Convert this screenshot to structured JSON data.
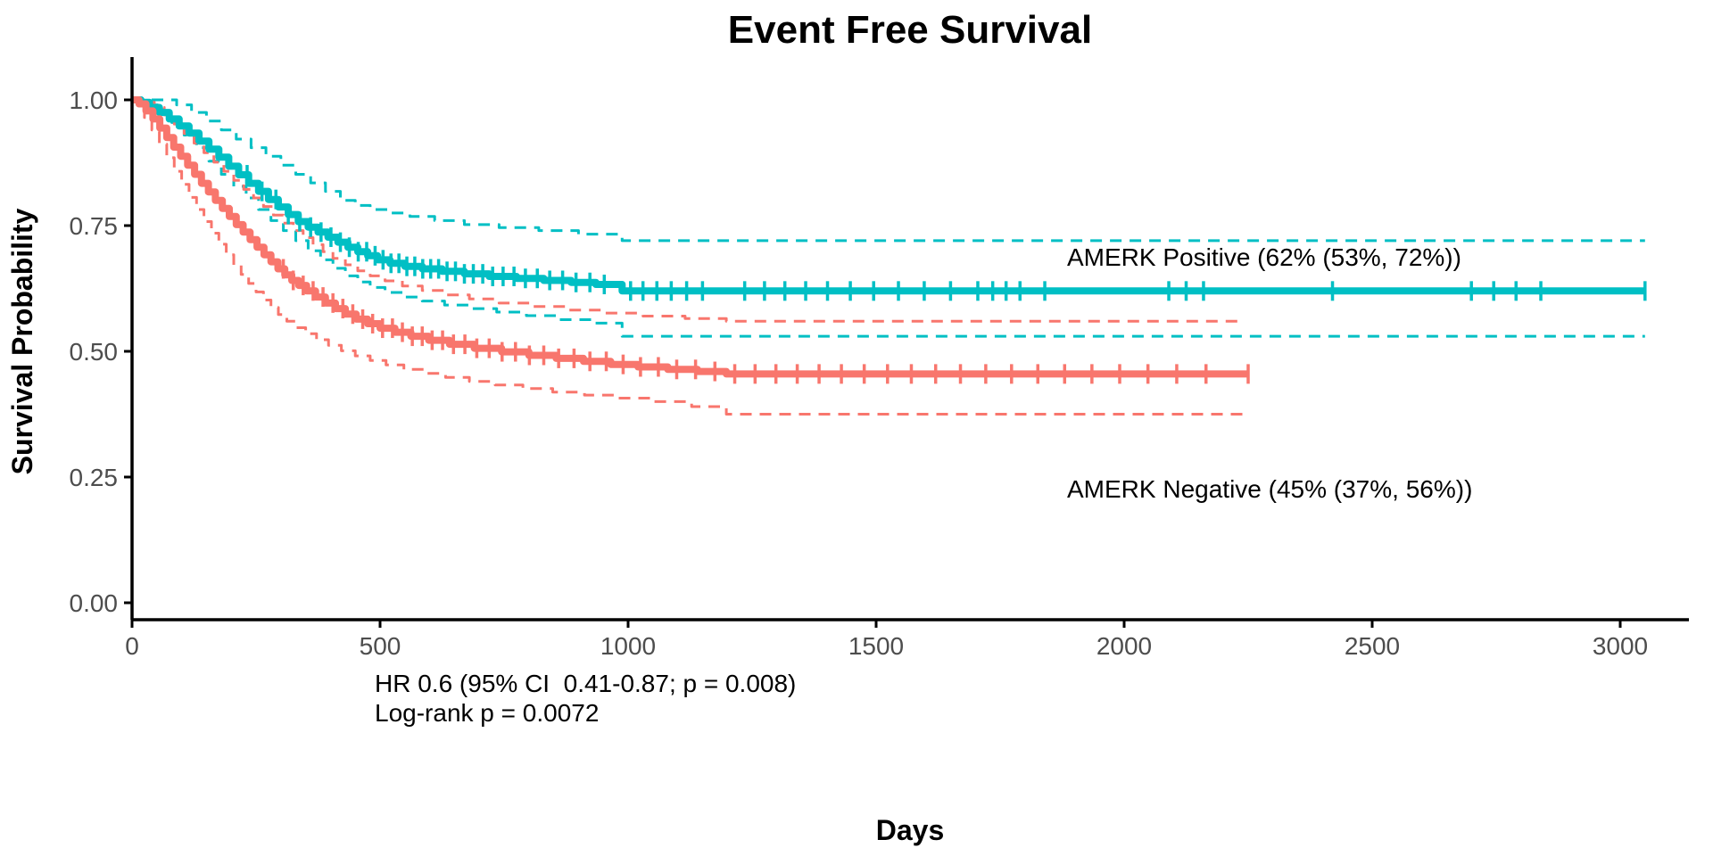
{
  "title": "Event Free Survival",
  "axes": {
    "x": {
      "label": "Days",
      "tick_labels": [
        "0",
        "500",
        "1000",
        "1500",
        "2000",
        "2500",
        "3000"
      ],
      "tick_values": [
        0,
        500,
        1000,
        1500,
        2000,
        2500,
        3000
      ],
      "range": [
        0,
        3000
      ]
    },
    "y": {
      "label": "Survival Probability",
      "tick_labels": [
        "1.00",
        "0.75",
        "0.50",
        "0.25",
        "0.00"
      ],
      "tick_values": [
        1.0,
        0.75,
        0.5,
        0.25,
        0.0
      ],
      "range": [
        0,
        1
      ]
    }
  },
  "annotations": {
    "hr_line": "HR 0.6 (95% CI  0.41-0.87; p = 0.008)",
    "logrank_line": "Log-rank p = 0.0072",
    "positive_label": "AMERK Positive (62% (53%, 72%))",
    "negative_label": "AMERK Negative (45% (37%, 56%))"
  },
  "colors": {
    "positive": "#00BFC4",
    "negative": "#F8766D",
    "axis_text": "#4d4d4d",
    "axis_line": "#000000"
  },
  "chart_data": {
    "type": "line",
    "subtype": "kaplan-meier-step",
    "title": "Event Free Survival",
    "xlabel": "Days",
    "ylabel": "Survival Probability",
    "xlim": [
      0,
      3050
    ],
    "ylim": [
      0.0,
      1.0
    ],
    "grid": false,
    "legend_position": "inline-right-labels",
    "ci_style": "dashed",
    "series": [
      {
        "name": "AMERK Positive",
        "color": "#00BFC4",
        "final_estimate_pct": 62,
        "ci_pct": [
          53,
          72
        ],
        "end_day": 3050,
        "steps": [
          [
            0,
            1.0
          ],
          [
            18,
            0.995
          ],
          [
            35,
            0.985
          ],
          [
            55,
            0.975
          ],
          [
            75,
            0.962
          ],
          [
            95,
            0.948
          ],
          [
            115,
            0.934
          ],
          [
            135,
            0.918
          ],
          [
            155,
            0.902
          ],
          [
            175,
            0.886
          ],
          [
            195,
            0.868
          ],
          [
            215,
            0.851
          ],
          [
            235,
            0.834
          ],
          [
            255,
            0.818
          ],
          [
            275,
            0.802
          ],
          [
            295,
            0.787
          ],
          [
            315,
            0.772
          ],
          [
            335,
            0.758
          ],
          [
            355,
            0.747
          ],
          [
            375,
            0.737
          ],
          [
            395,
            0.727
          ],
          [
            415,
            0.717
          ],
          [
            435,
            0.707
          ],
          [
            455,
            0.698
          ],
          [
            475,
            0.69
          ],
          [
            495,
            0.682
          ],
          [
            520,
            0.675
          ],
          [
            550,
            0.669
          ],
          [
            585,
            0.664
          ],
          [
            625,
            0.659
          ],
          [
            670,
            0.654
          ],
          [
            720,
            0.649
          ],
          [
            775,
            0.645
          ],
          [
            830,
            0.641
          ],
          [
            885,
            0.637
          ],
          [
            935,
            0.633
          ],
          [
            988,
            0.62
          ],
          [
            3050,
            0.62
          ]
        ],
        "ci_upper": [
          [
            0,
            1.0
          ],
          [
            60,
            1.0
          ],
          [
            90,
            0.99
          ],
          [
            120,
            0.975
          ],
          [
            150,
            0.958
          ],
          [
            180,
            0.94
          ],
          [
            210,
            0.922
          ],
          [
            240,
            0.905
          ],
          [
            270,
            0.888
          ],
          [
            300,
            0.87
          ],
          [
            330,
            0.852
          ],
          [
            360,
            0.835
          ],
          [
            390,
            0.818
          ],
          [
            420,
            0.8
          ],
          [
            450,
            0.79
          ],
          [
            480,
            0.782
          ],
          [
            520,
            0.775
          ],
          [
            560,
            0.768
          ],
          [
            610,
            0.76
          ],
          [
            670,
            0.752
          ],
          [
            740,
            0.746
          ],
          [
            820,
            0.74
          ],
          [
            900,
            0.733
          ],
          [
            988,
            0.72
          ],
          [
            3050,
            0.72
          ]
        ],
        "ci_lower": [
          [
            0,
            1.0
          ],
          [
            30,
            0.99
          ],
          [
            55,
            0.975
          ],
          [
            80,
            0.955
          ],
          [
            105,
            0.93
          ],
          [
            130,
            0.905
          ],
          [
            155,
            0.878
          ],
          [
            180,
            0.852
          ],
          [
            205,
            0.828
          ],
          [
            230,
            0.805
          ],
          [
            255,
            0.782
          ],
          [
            280,
            0.76
          ],
          [
            305,
            0.74
          ],
          [
            330,
            0.72
          ],
          [
            355,
            0.7
          ],
          [
            380,
            0.682
          ],
          [
            405,
            0.665
          ],
          [
            430,
            0.65
          ],
          [
            455,
            0.638
          ],
          [
            480,
            0.627
          ],
          [
            510,
            0.617
          ],
          [
            545,
            0.608
          ],
          [
            585,
            0.6
          ],
          [
            630,
            0.592
          ],
          [
            680,
            0.585
          ],
          [
            735,
            0.578
          ],
          [
            795,
            0.571
          ],
          [
            860,
            0.563
          ],
          [
            930,
            0.556
          ],
          [
            988,
            0.53
          ],
          [
            3050,
            0.53
          ]
        ],
        "censor_days": [
          232,
          262,
          290,
          315,
          338,
          360,
          381,
          401,
          420,
          438,
          456,
          473,
          490,
          506,
          522,
          538,
          554,
          570,
          586,
          602,
          618,
          635,
          652,
          670,
          688,
          707,
          727,
          748,
          770,
          793,
          817,
          842,
          868,
          895,
          923,
          952,
          1005,
          1030,
          1058,
          1087,
          1118,
          1150,
          1235,
          1275,
          1316,
          1358,
          1402,
          1448,
          1495,
          1545,
          1597,
          1650,
          1705,
          1735,
          1762,
          1790,
          1840,
          2090,
          2125,
          2160,
          2420,
          2700,
          2745,
          2790,
          2840,
          3050
        ]
      },
      {
        "name": "AMERK Negative",
        "color": "#F8766D",
        "final_estimate_pct": 45,
        "ci_pct": [
          37,
          56
        ],
        "end_day": 2250,
        "steps": [
          [
            0,
            1.0
          ],
          [
            14,
            0.992
          ],
          [
            28,
            0.978
          ],
          [
            42,
            0.962
          ],
          [
            56,
            0.944
          ],
          [
            70,
            0.925
          ],
          [
            84,
            0.906
          ],
          [
            98,
            0.888
          ],
          [
            112,
            0.87
          ],
          [
            126,
            0.852
          ],
          [
            140,
            0.834
          ],
          [
            154,
            0.817
          ],
          [
            168,
            0.8
          ],
          [
            182,
            0.784
          ],
          [
            196,
            0.768
          ],
          [
            210,
            0.752
          ],
          [
            224,
            0.737
          ],
          [
            238,
            0.722
          ],
          [
            252,
            0.707
          ],
          [
            266,
            0.692
          ],
          [
            280,
            0.678
          ],
          [
            294,
            0.664
          ],
          [
            308,
            0.652
          ],
          [
            322,
            0.641
          ],
          [
            336,
            0.631
          ],
          [
            352,
            0.62
          ],
          [
            370,
            0.608
          ],
          [
            390,
            0.596
          ],
          [
            410,
            0.585
          ],
          [
            430,
            0.574
          ],
          [
            452,
            0.564
          ],
          [
            475,
            0.555
          ],
          [
            500,
            0.546
          ],
          [
            530,
            0.538
          ],
          [
            562,
            0.53
          ],
          [
            598,
            0.522
          ],
          [
            640,
            0.514
          ],
          [
            690,
            0.506
          ],
          [
            745,
            0.499
          ],
          [
            800,
            0.492
          ],
          [
            855,
            0.486
          ],
          [
            910,
            0.48
          ],
          [
            965,
            0.474
          ],
          [
            1020,
            0.469
          ],
          [
            1080,
            0.464
          ],
          [
            1140,
            0.46
          ],
          [
            1198,
            0.455
          ],
          [
            2250,
            0.455
          ]
        ],
        "ci_upper": [
          [
            0,
            1.0
          ],
          [
            25,
            0.995
          ],
          [
            45,
            0.985
          ],
          [
            65,
            0.97
          ],
          [
            85,
            0.952
          ],
          [
            105,
            0.933
          ],
          [
            125,
            0.914
          ],
          [
            145,
            0.895
          ],
          [
            165,
            0.876
          ],
          [
            185,
            0.858
          ],
          [
            205,
            0.84
          ],
          [
            225,
            0.822
          ],
          [
            245,
            0.805
          ],
          [
            265,
            0.788
          ],
          [
            285,
            0.771
          ],
          [
            305,
            0.755
          ],
          [
            325,
            0.74
          ],
          [
            345,
            0.726
          ],
          [
            365,
            0.712
          ],
          [
            385,
            0.698
          ],
          [
            405,
            0.685
          ],
          [
            430,
            0.672
          ],
          [
            455,
            0.66
          ],
          [
            480,
            0.65
          ],
          [
            510,
            0.64
          ],
          [
            545,
            0.63
          ],
          [
            585,
            0.621
          ],
          [
            630,
            0.612
          ],
          [
            680,
            0.604
          ],
          [
            740,
            0.596
          ],
          [
            805,
            0.589
          ],
          [
            875,
            0.582
          ],
          [
            950,
            0.576
          ],
          [
            1030,
            0.57
          ],
          [
            1115,
            0.565
          ],
          [
            1198,
            0.56
          ],
          [
            2240,
            0.56
          ]
        ],
        "ci_lower": [
          [
            0,
            1.0
          ],
          [
            12,
            0.985
          ],
          [
            25,
            0.965
          ],
          [
            40,
            0.94
          ],
          [
            55,
            0.912
          ],
          [
            70,
            0.885
          ],
          [
            85,
            0.858
          ],
          [
            100,
            0.832
          ],
          [
            115,
            0.806
          ],
          [
            130,
            0.782
          ],
          [
            145,
            0.758
          ],
          [
            160,
            0.735
          ],
          [
            175,
            0.713
          ],
          [
            190,
            0.692
          ],
          [
            205,
            0.672
          ],
          [
            220,
            0.653
          ],
          [
            235,
            0.635
          ],
          [
            250,
            0.618
          ],
          [
            265,
            0.602
          ],
          [
            280,
            0.587
          ],
          [
            295,
            0.573
          ],
          [
            312,
            0.56
          ],
          [
            330,
            0.547
          ],
          [
            350,
            0.535
          ],
          [
            372,
            0.523
          ],
          [
            396,
            0.512
          ],
          [
            422,
            0.501
          ],
          [
            450,
            0.491
          ],
          [
            480,
            0.482
          ],
          [
            512,
            0.473
          ],
          [
            548,
            0.464
          ],
          [
            588,
            0.456
          ],
          [
            632,
            0.448
          ],
          [
            680,
            0.44
          ],
          [
            732,
            0.433
          ],
          [
            788,
            0.426
          ],
          [
            848,
            0.419
          ],
          [
            912,
            0.413
          ],
          [
            980,
            0.407
          ],
          [
            1052,
            0.4
          ],
          [
            1128,
            0.39
          ],
          [
            1198,
            0.375
          ],
          [
            2240,
            0.375
          ]
        ],
        "censor_days": [
          305,
          325,
          345,
          365,
          385,
          405,
          425,
          445,
          465,
          485,
          505,
          525,
          545,
          565,
          585,
          605,
          626,
          648,
          671,
          695,
          720,
          746,
          773,
          801,
          830,
          860,
          891,
          923,
          956,
          990,
          1025,
          1061,
          1098,
          1136,
          1175,
          1215,
          1256,
          1298,
          1341,
          1385,
          1430,
          1476,
          1523,
          1571,
          1620,
          1670,
          1721,
          1773,
          1826,
          1880,
          1935,
          1991,
          2048,
          2106,
          2165,
          2250
        ]
      }
    ]
  }
}
